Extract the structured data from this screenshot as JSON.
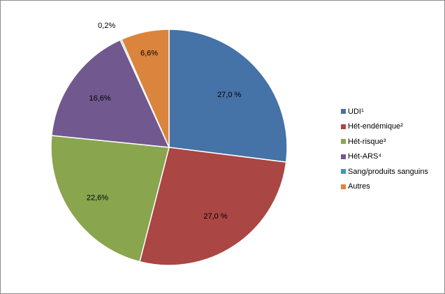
{
  "chart_data": {
    "type": "pie",
    "title": "",
    "legend_position": "right",
    "start_angle": "top, clockwise",
    "slices": [
      {
        "name": "UDI¹",
        "value": 27.0,
        "label": "27,0 %",
        "color": "#4572A7"
      },
      {
        "name": "Hét-endémique²",
        "value": 27.0,
        "label": "27,0 %",
        "color": "#AA4643"
      },
      {
        "name": "Hét-risque³",
        "value": 22.6,
        "label": "22,6%",
        "color": "#89A54E"
      },
      {
        "name": "Hét-ARS⁴",
        "value": 16.6,
        "label": "16,6%",
        "color": "#71588F"
      },
      {
        "name": "Sang/produits sanguins",
        "value": 0.2,
        "label": "0,2%",
        "color": "#4198AF"
      },
      {
        "name": "Autres",
        "value": 6.6,
        "label": "6,6%",
        "color": "#DB843D"
      }
    ]
  }
}
